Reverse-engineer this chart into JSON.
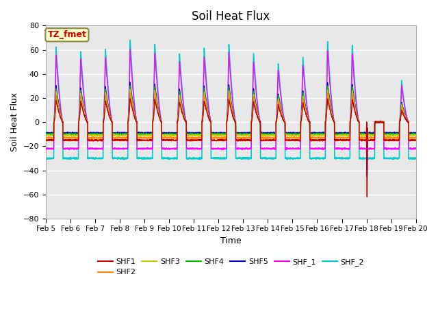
{
  "title": "Soil Heat Flux",
  "xlabel": "Time",
  "ylabel": "Soil Heat Flux",
  "ylim": [
    -80,
    80
  ],
  "yticks": [
    -80,
    -60,
    -40,
    -20,
    0,
    20,
    40,
    60,
    80
  ],
  "xtick_labels": [
    "Feb 5",
    "Feb 6",
    "Feb 7",
    "Feb 8",
    "Feb 9",
    "Feb 10",
    "Feb 11",
    "Feb 12",
    "Feb 13",
    "Feb 14",
    "Feb 15",
    "Feb 16",
    "Feb 17",
    "Feb 18",
    "Feb 19",
    "Feb 20"
  ],
  "series": {
    "SHF1": {
      "color": "#cc0000",
      "lw": 1.0,
      "day_amp": 18,
      "night_val": -15
    },
    "SHF2": {
      "color": "#ff8800",
      "lw": 1.0,
      "day_amp": 22,
      "night_val": -13
    },
    "SHF3": {
      "color": "#cccc00",
      "lw": 1.0,
      "day_amp": 25,
      "night_val": -11
    },
    "SHF4": {
      "color": "#00bb00",
      "lw": 1.0,
      "day_amp": 28,
      "night_val": -10
    },
    "SHF5": {
      "color": "#0000cc",
      "lw": 1.0,
      "day_amp": 30,
      "night_val": -9
    },
    "SHF_1": {
      "color": "#ff00ff",
      "lw": 1.0,
      "day_amp": 55,
      "night_val": -22
    },
    "SHF_2": {
      "color": "#00cccc",
      "lw": 1.2,
      "day_amp": 62,
      "night_val": -30
    }
  },
  "annotation_text": "TZ_fmet",
  "annotation_color": "#cc0000",
  "annotation_bg": "#ffffcc",
  "annotation_border": "#888844",
  "background_color": "#e8e8e8",
  "grid_color": "#ffffff",
  "fig_bg": "#ffffff",
  "anomaly_day": 13.0,
  "day_amplitudes": [
    1.0,
    0.95,
    0.98,
    1.1,
    1.05,
    0.92,
    1.0,
    1.05,
    0.93,
    0.8,
    0.88,
    1.1,
    1.05,
    0.0,
    0.55,
    0.58
  ]
}
